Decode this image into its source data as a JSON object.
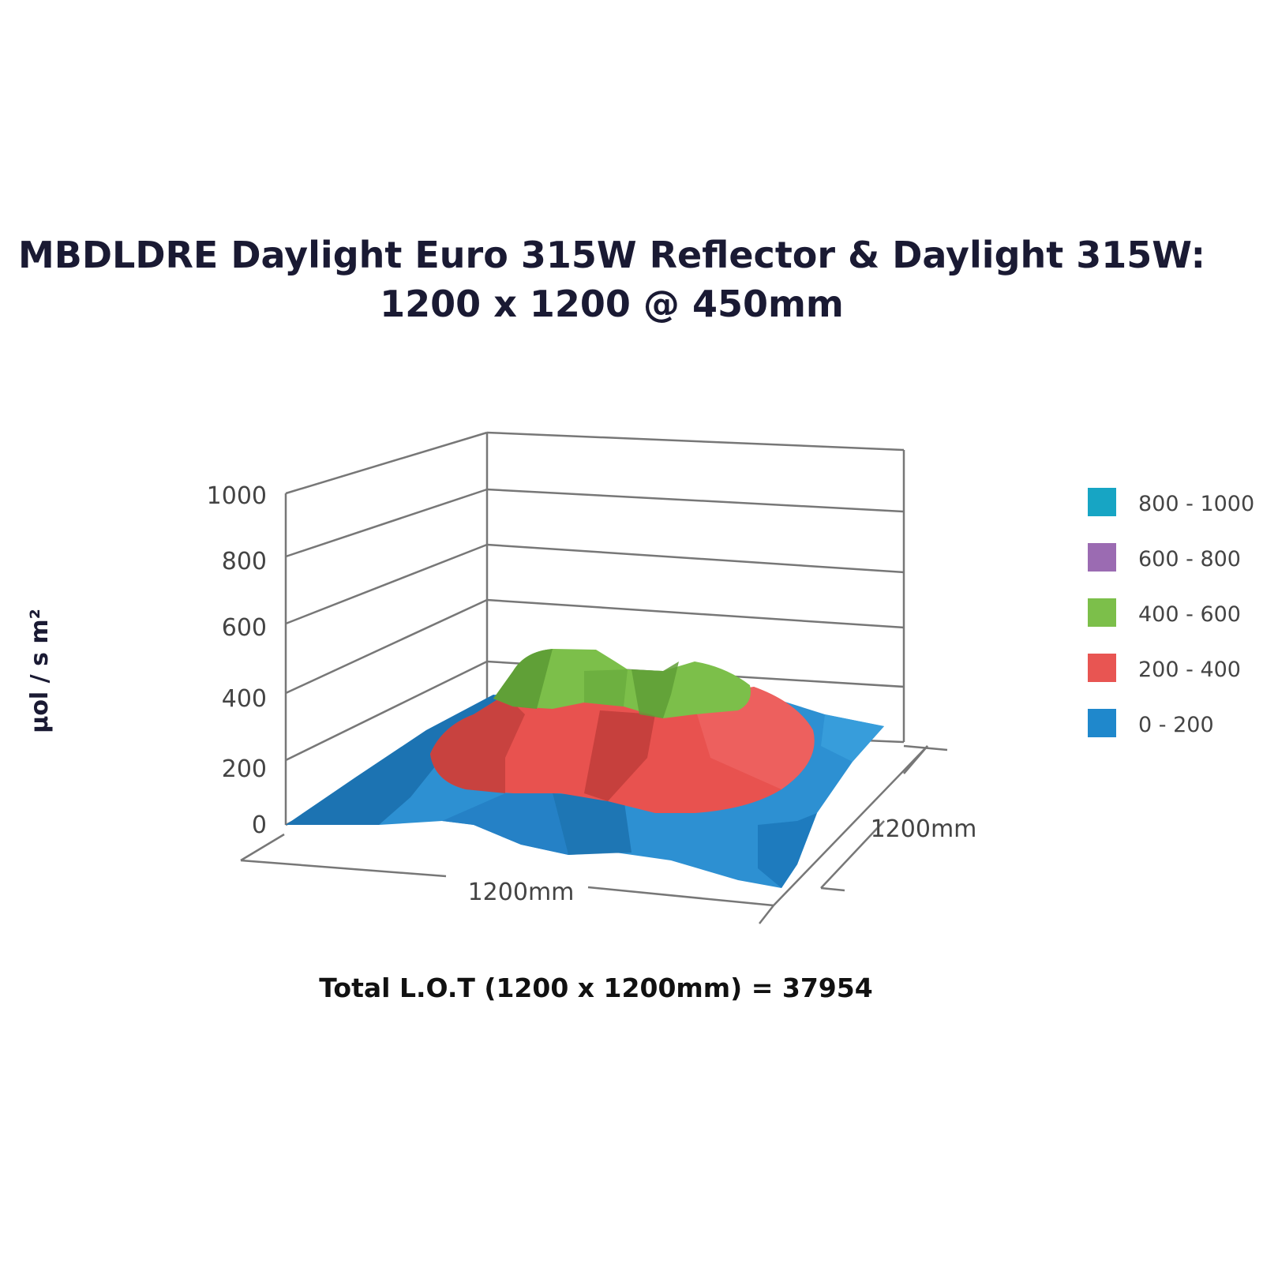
{
  "chart_data": {
    "type": "surface3d",
    "title_lines": [
      "MBDLDRE Daylight Euro 315W Reflector & Daylight 315W:",
      "1200 x 1200 @ 450mm"
    ],
    "zlabel": "μol / s m²",
    "z_ticks": [
      "0",
      "200",
      "400",
      "600",
      "800",
      "1000"
    ],
    "zlim": [
      0,
      1000
    ],
    "x_axis_label": "1200mm",
    "y_axis_label": "1200mm",
    "legend": {
      "position": "right",
      "items": [
        {
          "label": "800 - 1000",
          "color": "#17a5c4"
        },
        {
          "label": "600 - 800",
          "color": "#9b6bb2"
        },
        {
          "label": "400 - 600",
          "color": "#7cbf4a"
        },
        {
          "label": "200 - 400",
          "color": "#e85552"
        },
        {
          "label": "0 - 200",
          "color": "#1f88cc"
        }
      ]
    },
    "surface_bands": [
      {
        "band": "0 - 200",
        "color": "#1f88cc"
      },
      {
        "band": "200 - 400",
        "color": "#e85552"
      },
      {
        "band": "400 - 600",
        "color": "#7cbf4a"
      }
    ],
    "peak_value_approx": 520
  },
  "footer": {
    "total_lot": "Total L.O.T (1200 x 1200mm) = 37954"
  }
}
